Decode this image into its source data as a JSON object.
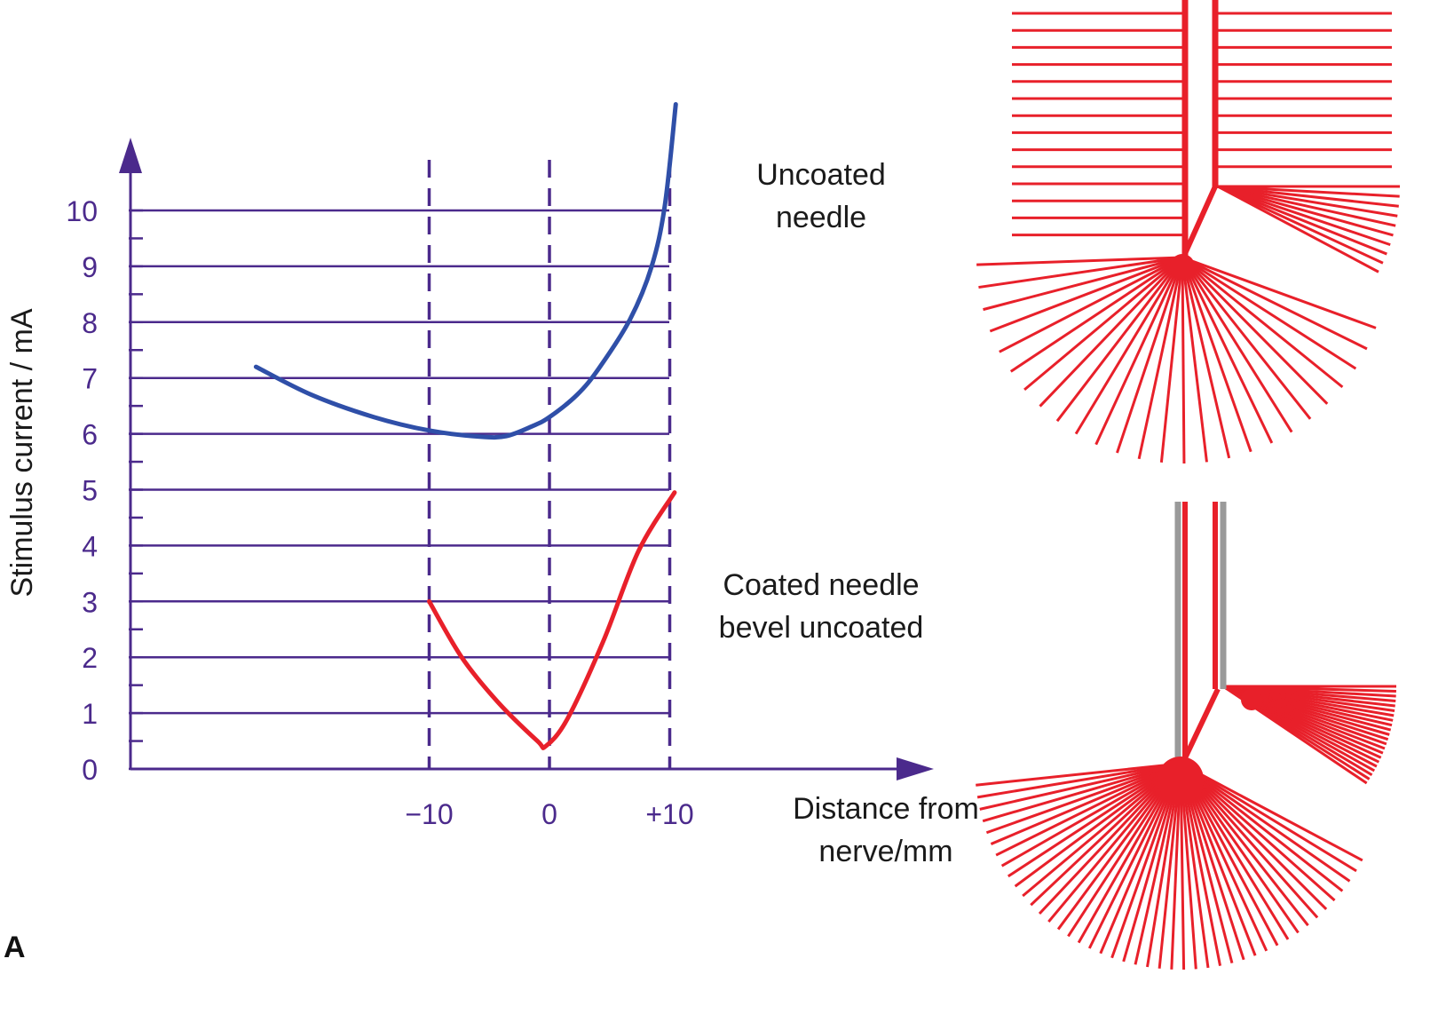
{
  "chart_data": {
    "type": "line",
    "panel_label": "A",
    "ylabel": "Stimulus current / mA",
    "xlabel_lines": [
      "Distance from",
      "nerve/mm"
    ],
    "ylim": [
      0,
      10
    ],
    "yticks": [
      "0",
      "1",
      "2",
      "3",
      "4",
      "5",
      "6",
      "7",
      "8",
      "9",
      "10"
    ],
    "xticks": [
      {
        "value": -10,
        "label": "−10"
      },
      {
        "value": 0,
        "label": "0"
      },
      {
        "value": 10,
        "label": "+10"
      }
    ],
    "grid": "horizontal lines at each integer mA; dashed vertical lines at -10, 0, +10",
    "series": [
      {
        "name": "Uncoated needle",
        "label_lines": [
          "Uncoated",
          "needle"
        ],
        "color": "#2f4fa8",
        "x": [
          -24.4,
          -19.8,
          -14.6,
          -10,
          -5.8,
          -3.6,
          -1.4,
          0,
          2.3,
          4.1,
          6.7,
          8.5,
          9.6,
          10.5
        ],
        "y": [
          7.2,
          6.7,
          6.3,
          6.06,
          5.95,
          5.96,
          6.14,
          6.3,
          6.7,
          7.17,
          8.05,
          9.0,
          10.1,
          11.9
        ]
      },
      {
        "name": "Coated needle bevel uncoated",
        "label_lines": [
          "Coated needle",
          "bevel uncoated"
        ],
        "color": "#e8202a",
        "x": [
          -10,
          -7.3,
          -4.3,
          -1,
          -0.3,
          1.5,
          4.5,
          7.4,
          10.4
        ],
        "y": [
          3.0,
          2.0,
          1.2,
          0.5,
          0.41,
          0.9,
          2.3,
          3.9,
          4.95
        ]
      }
    ]
  },
  "colors": {
    "axis": "#4b2a8c",
    "field": "#e8202a",
    "coating": "#9a9a9a"
  }
}
